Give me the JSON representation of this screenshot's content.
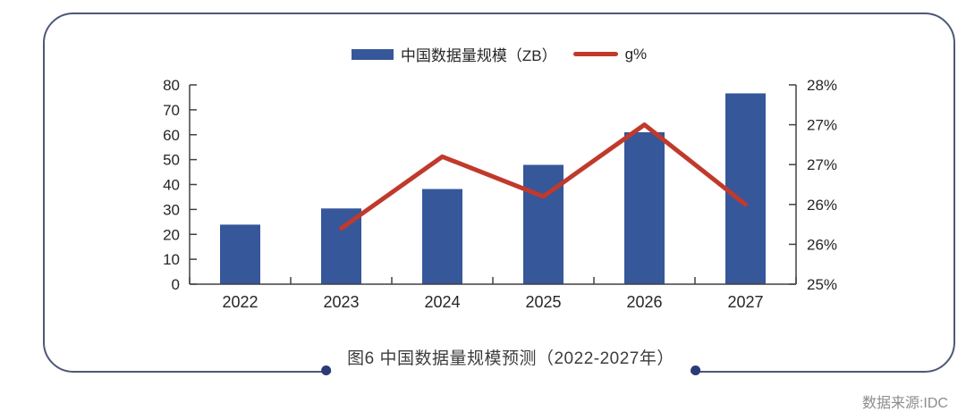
{
  "legend": {
    "bar_label": "中国数据量规模（ZB）",
    "line_label": "g%"
  },
  "caption": {
    "text": "图6 中国数据量规模预测（2022-2027年）"
  },
  "source": {
    "text": "数据来源:IDC"
  },
  "colors": {
    "bar": "#36579A",
    "line": "#C03A2C",
    "card_border": "#4D5878",
    "caption_dot": "#2A3B76",
    "axis": "#404040",
    "axis_text": "#262626",
    "caption_text": "#3D3D3D",
    "source_text": "#8C8C8C"
  },
  "chart_data": {
    "type": "bar",
    "subtype": "combo-bar-line-dual-axis",
    "title": "图6 中国数据量规模预测（2022-2027年）",
    "source": "数据来源:IDC",
    "grid": false,
    "legend_position": "top-center",
    "categories": [
      "2022",
      "2023",
      "2024",
      "2025",
      "2026",
      "2027"
    ],
    "series": [
      {
        "name": "中国数据量规模（ZB）",
        "type": "bar",
        "axis": "left",
        "color": "#36579A",
        "values": [
          23.9,
          30.4,
          38.2,
          47.9,
          61.0,
          76.6
        ]
      },
      {
        "name": "g%",
        "type": "line",
        "axis": "right",
        "color": "#C03A2C",
        "values": [
          null,
          25.7,
          26.6,
          26.1,
          27.0,
          26.0
        ]
      }
    ],
    "left_axis": {
      "min": 0,
      "max": 80,
      "step": 10
    },
    "right_axis": {
      "min": 25,
      "max": 27.5,
      "ticks": [
        {
          "value": 25.0,
          "label": "25%"
        },
        {
          "value": 25.5,
          "label": "26%"
        },
        {
          "value": 26.0,
          "label": "26%"
        },
        {
          "value": 26.5,
          "label": "27%"
        },
        {
          "value": 27.0,
          "label": "27%"
        },
        {
          "value": 27.5,
          "label": "28%"
        }
      ]
    }
  }
}
